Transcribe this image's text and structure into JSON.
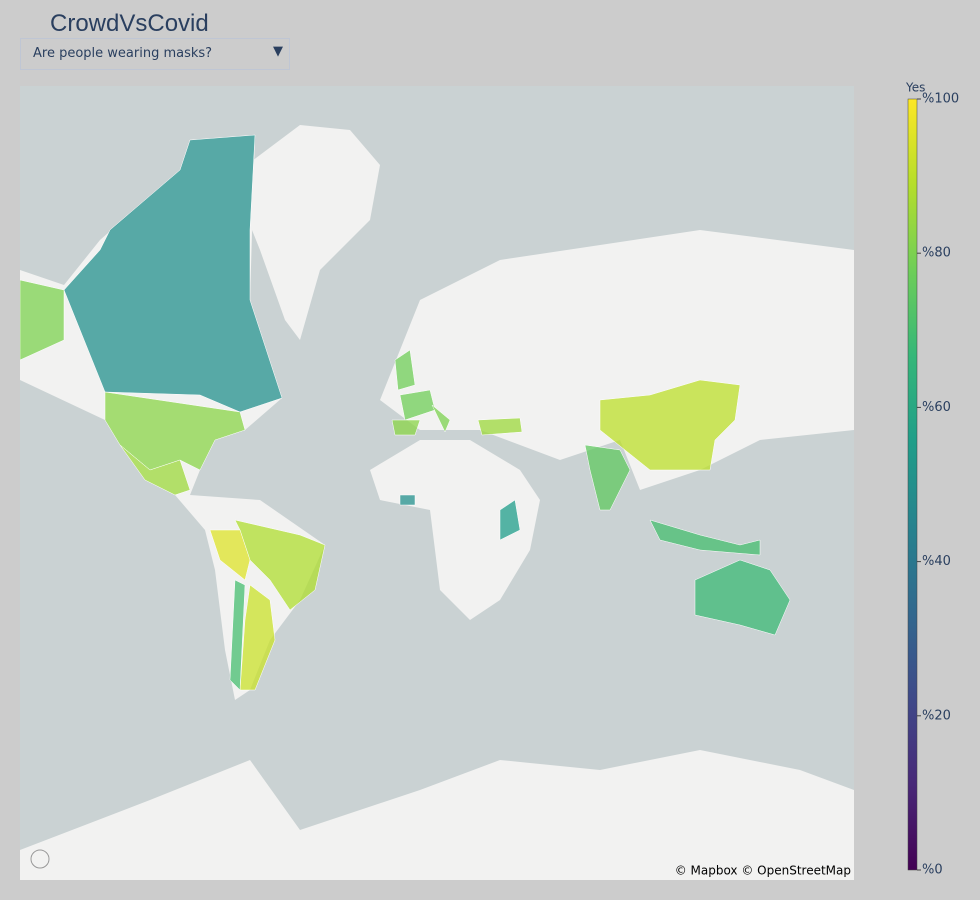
{
  "header": {
    "title": "CrowdVsCovid",
    "dropdown": "Are people wearing masks?"
  },
  "chart_data": {
    "type": "choropleth",
    "values": [
      50,
      80,
      82,
      85,
      88,
      95,
      92,
      70,
      78,
      78,
      82,
      80,
      85,
      90,
      75,
      70,
      68,
      55,
      50
    ],
    "colorscale": [
      "#440154",
      "#482878",
      "#3e4989",
      "#31688e",
      "#26828e",
      "#1f9e89",
      "#35b779",
      "#6ece58",
      "#b5de2b",
      "#fde725"
    ],
    "colorbar": {
      "title": "Yes",
      "lim": [
        0,
        100
      ],
      "ticks": [
        {
          "value": 0,
          "label": "%0"
        },
        {
          "value": 20,
          "label": "%20"
        },
        {
          "value": 40,
          "label": "%40"
        },
        {
          "value": 60,
          "label": "%60"
        },
        {
          "value": 80,
          "label": "%80"
        },
        {
          "value": 100,
          "label": "%100"
        }
      ]
    },
    "attribution": "© Mapbox © OpenStreetMap"
  }
}
